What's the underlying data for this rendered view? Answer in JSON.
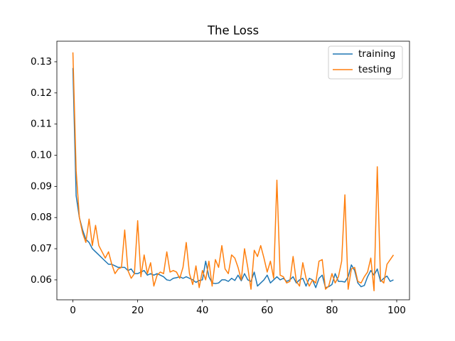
{
  "chart_data": {
    "type": "line",
    "title": "The Loss",
    "x": [
      0,
      1,
      2,
      3,
      4,
      5,
      6,
      7,
      8,
      9,
      10,
      11,
      12,
      13,
      14,
      15,
      16,
      17,
      18,
      19,
      20,
      21,
      22,
      23,
      24,
      25,
      26,
      27,
      28,
      29,
      30,
      31,
      32,
      33,
      34,
      35,
      36,
      37,
      38,
      39,
      40,
      41,
      42,
      43,
      44,
      45,
      46,
      47,
      48,
      49,
      50,
      51,
      52,
      53,
      54,
      55,
      56,
      57,
      58,
      59,
      60,
      61,
      62,
      63,
      64,
      65,
      66,
      67,
      68,
      69,
      70,
      71,
      72,
      73,
      74,
      75,
      76,
      77,
      78,
      79,
      80,
      81,
      82,
      83,
      84,
      85,
      86,
      87,
      88,
      89,
      90,
      91,
      92,
      93,
      94,
      95,
      96,
      97,
      98,
      99
    ],
    "series": [
      {
        "name": "training",
        "color": "#1f77b4",
        "values": [
          0.128,
          0.087,
          0.08,
          0.076,
          0.073,
          0.072,
          0.07,
          0.069,
          0.068,
          0.067,
          0.066,
          0.065,
          0.065,
          0.0645,
          0.064,
          0.064,
          0.064,
          0.063,
          0.0635,
          0.062,
          0.062,
          0.0625,
          0.063,
          0.0615,
          0.062,
          0.0615,
          0.062,
          0.0615,
          0.061,
          0.06,
          0.0598,
          0.0605,
          0.0607,
          0.061,
          0.0605,
          0.061,
          0.0605,
          0.06,
          0.0592,
          0.0598,
          0.06,
          0.066,
          0.061,
          0.059,
          0.0588,
          0.059,
          0.06,
          0.06,
          0.0595,
          0.0605,
          0.0598,
          0.0615,
          0.0597,
          0.062,
          0.06,
          0.0595,
          0.0625,
          0.058,
          0.059,
          0.06,
          0.0615,
          0.059,
          0.06,
          0.061,
          0.06,
          0.0605,
          0.0595,
          0.06,
          0.061,
          0.059,
          0.06,
          0.0605,
          0.058,
          0.0605,
          0.06,
          0.0575,
          0.0605,
          0.0615,
          0.0575,
          0.0578,
          0.0585,
          0.062,
          0.0595,
          0.0595,
          0.0593,
          0.061,
          0.0648,
          0.063,
          0.059,
          0.0578,
          0.0582,
          0.061,
          0.063,
          0.0615,
          0.0635,
          0.0595,
          0.0605,
          0.0612,
          0.0595,
          0.06
        ]
      },
      {
        "name": "testing",
        "color": "#ff7f0e",
        "values": [
          0.133,
          0.095,
          0.08,
          0.075,
          0.072,
          0.0795,
          0.071,
          0.0775,
          0.071,
          0.069,
          0.067,
          0.069,
          0.065,
          0.062,
          0.0635,
          0.064,
          0.076,
          0.063,
          0.0605,
          0.062,
          0.079,
          0.061,
          0.068,
          0.062,
          0.0655,
          0.058,
          0.0615,
          0.0625,
          0.062,
          0.069,
          0.0625,
          0.063,
          0.0625,
          0.0605,
          0.064,
          0.072,
          0.062,
          0.0585,
          0.0645,
          0.0575,
          0.063,
          0.06,
          0.066,
          0.058,
          0.0665,
          0.064,
          0.071,
          0.0635,
          0.062,
          0.068,
          0.067,
          0.064,
          0.06,
          0.07,
          0.064,
          0.057,
          0.0695,
          0.0675,
          0.071,
          0.067,
          0.0625,
          0.066,
          0.0605,
          0.092,
          0.0615,
          0.061,
          0.059,
          0.0595,
          0.0675,
          0.0595,
          0.058,
          0.0655,
          0.0605,
          0.058,
          0.06,
          0.059,
          0.066,
          0.0665,
          0.057,
          0.058,
          0.062,
          0.059,
          0.061,
          0.066,
          0.0873,
          0.057,
          0.0635,
          0.064,
          0.0595,
          0.059,
          0.061,
          0.0625,
          0.067,
          0.0565,
          0.0963,
          0.06,
          0.059,
          0.065,
          0.0665,
          0.068
        ]
      }
    ],
    "xlim": [
      -4.95,
      103.95
    ],
    "xticks": [
      0,
      20,
      40,
      60,
      80,
      100
    ],
    "ylim": [
      0.0536,
      0.1366
    ],
    "yticks": [
      0.06,
      0.07,
      0.08,
      0.09,
      {
        "value": 0.1,
        "label": "0.10"
      },
      0.11,
      0.12,
      0.13
    ],
    "grid": false,
    "legend": "upper right"
  }
}
